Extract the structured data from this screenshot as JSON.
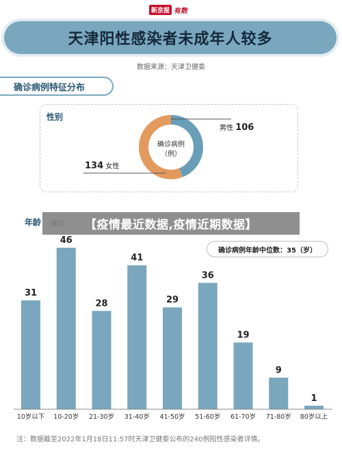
{
  "masthead": {
    "brand": "新京报",
    "tag": "有数"
  },
  "title": "天津阳性感染者未成年人较多",
  "source": "数据来源：天津卫健委",
  "section_title": "确诊病例特征分布",
  "gender": {
    "label": "性别",
    "center_line1": "确诊病例",
    "center_line2": "（例）",
    "male_label": "男性",
    "male_value": "106",
    "female_label": "女性",
    "female_value": "134",
    "colors": {
      "male": "#6a9eb8",
      "female": "#e39a5e"
    }
  },
  "age_section": {
    "label": "年龄",
    "sub": "确诊"
  },
  "overlay_banner": "【疫情最近数据,疫情近期数据】",
  "median_label": "确诊病例年龄中位数：35（岁）",
  "footnote": "注：数据截至2022年1月18日11:57时天津卫健委公布的240例阳性感染者详情。",
  "chart_data": [
    {
      "type": "pie",
      "categories": [
        "男性",
        "女性"
      ],
      "values": [
        106,
        134
      ],
      "title": "性别"
    },
    {
      "type": "bar",
      "categories": [
        "10岁以下",
        "10-20岁",
        "21-30岁",
        "31-40岁",
        "41-50岁",
        "51-60岁",
        "61-70岁",
        "71-80岁",
        "80岁以上"
      ],
      "values": [
        31,
        46,
        28,
        41,
        29,
        36,
        19,
        9,
        1
      ],
      "ylim": [
        0,
        46
      ],
      "grid": false,
      "color": "#7aa7be"
    }
  ]
}
